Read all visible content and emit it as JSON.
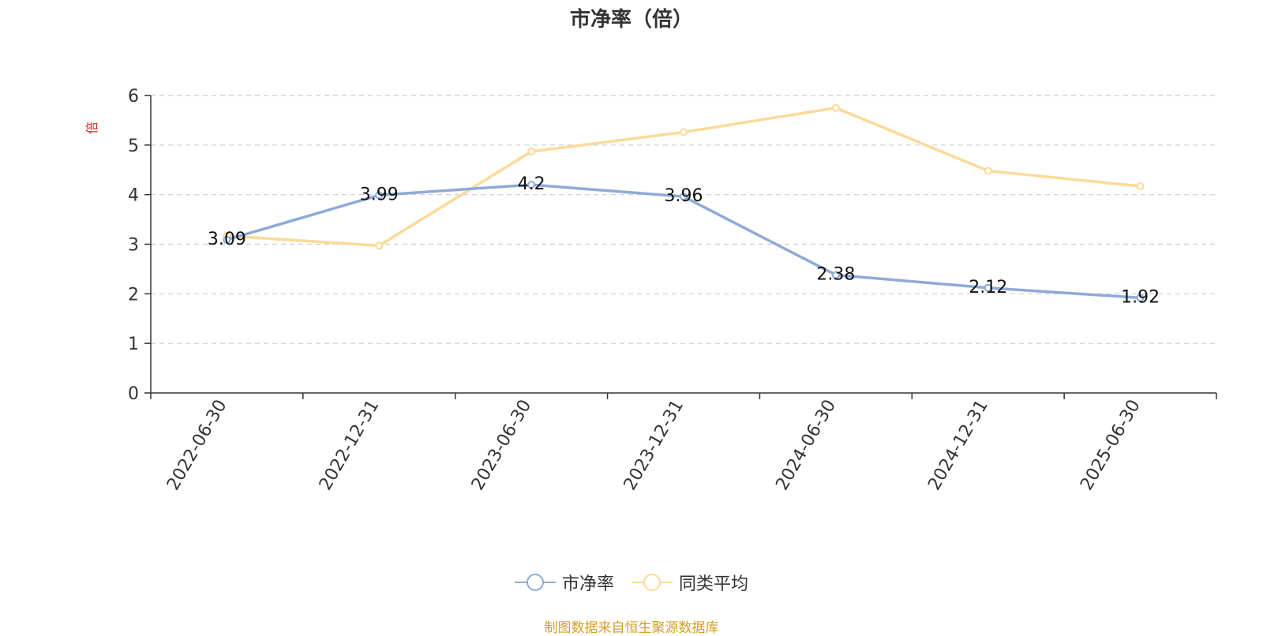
{
  "chart_data": {
    "type": "line",
    "title": "市净率（倍）",
    "ylabel": "倍",
    "categories": [
      "2022-06-30",
      "2022-12-31",
      "2023-06-30",
      "2023-12-31",
      "2024-06-30",
      "2024-12-31",
      "2025-06-30"
    ],
    "ylim": [
      0,
      6
    ],
    "yticks": [
      "0",
      "1",
      "2",
      "3",
      "4",
      "5",
      "6"
    ],
    "series": [
      {
        "name": "市净率",
        "values": [
          3.09,
          3.99,
          4.2,
          3.96,
          2.38,
          2.12,
          1.92
        ],
        "labels": [
          "3.09",
          "3.99",
          "4.2",
          "3.96",
          "2.38",
          "2.12",
          "1.92"
        ],
        "color": "#8eaad8"
      },
      {
        "name": "同类平均",
        "values": [
          3.17,
          2.97,
          4.87,
          5.26,
          5.75,
          4.48,
          4.17
        ],
        "color": "#fdd999"
      }
    ],
    "grid": true,
    "legend_position": "bottom"
  },
  "source_note": "制图数据来自恒生聚源数据库",
  "colors": {
    "axis_label": "#e02020",
    "source_note": "#d4a020"
  }
}
